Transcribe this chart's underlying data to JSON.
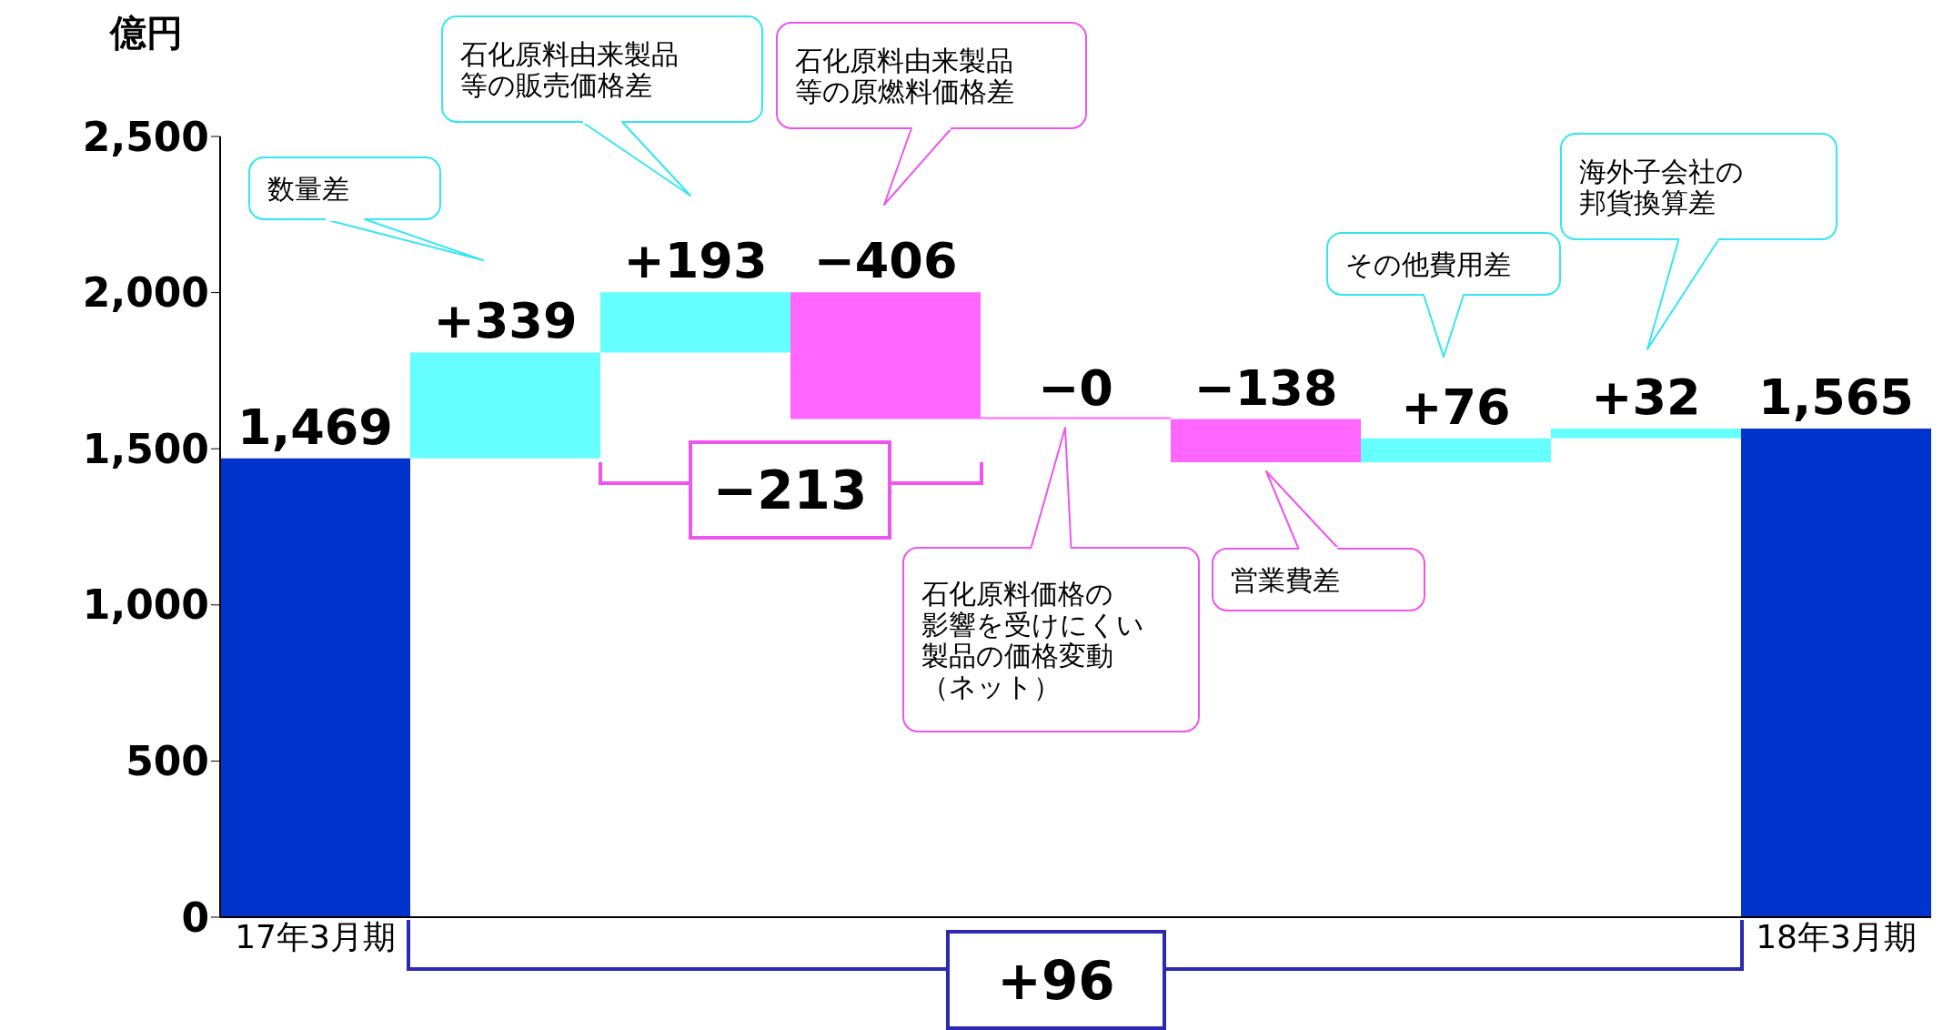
{
  "chart_data": {
    "type": "bar",
    "ylabel": "億円",
    "categories": [
      "17年3月期",
      null,
      null,
      null,
      null,
      null,
      null,
      null,
      "18年3月期"
    ],
    "values": [
      1469,
      339,
      193,
      -406,
      0,
      -138,
      76,
      32,
      1565
    ],
    "base": [
      0,
      1469,
      1808,
      2001,
      1595,
      1595,
      1457,
      1533,
      0
    ],
    "colors": [
      "#0033cc",
      "#66ffff",
      "#66ffff",
      "#ff66ff",
      "#ff66ff",
      "#ff66ff",
      "#66ffff",
      "#66ffff",
      "#0033cc"
    ],
    "value_labels": [
      "1,469",
      "+339",
      "+193",
      "−406",
      "−0",
      "−138",
      "+76",
      "+32",
      "1,565"
    ],
    "ylim": [
      0,
      2500
    ],
    "yticks": [
      {
        "value": 0,
        "label": "0"
      },
      {
        "value": 500,
        "label": "500"
      },
      {
        "value": 1000,
        "label": "1,000"
      },
      {
        "value": 1500,
        "label": "1,500"
      },
      {
        "value": 2000,
        "label": "2,000"
      },
      {
        "value": 2500,
        "label": "2,500"
      }
    ],
    "annotations": [
      "数量差",
      "石化原料由来製品等の販売価格差",
      "石化原料由来製品等の原燃料価格差",
      "石化原料価格の影響を受けにくい製品の価格変動（ネット）",
      "営業費差",
      "その他費用差",
      "海外子会社の邦貨換算差",
      "−213",
      "+96"
    ]
  }
}
